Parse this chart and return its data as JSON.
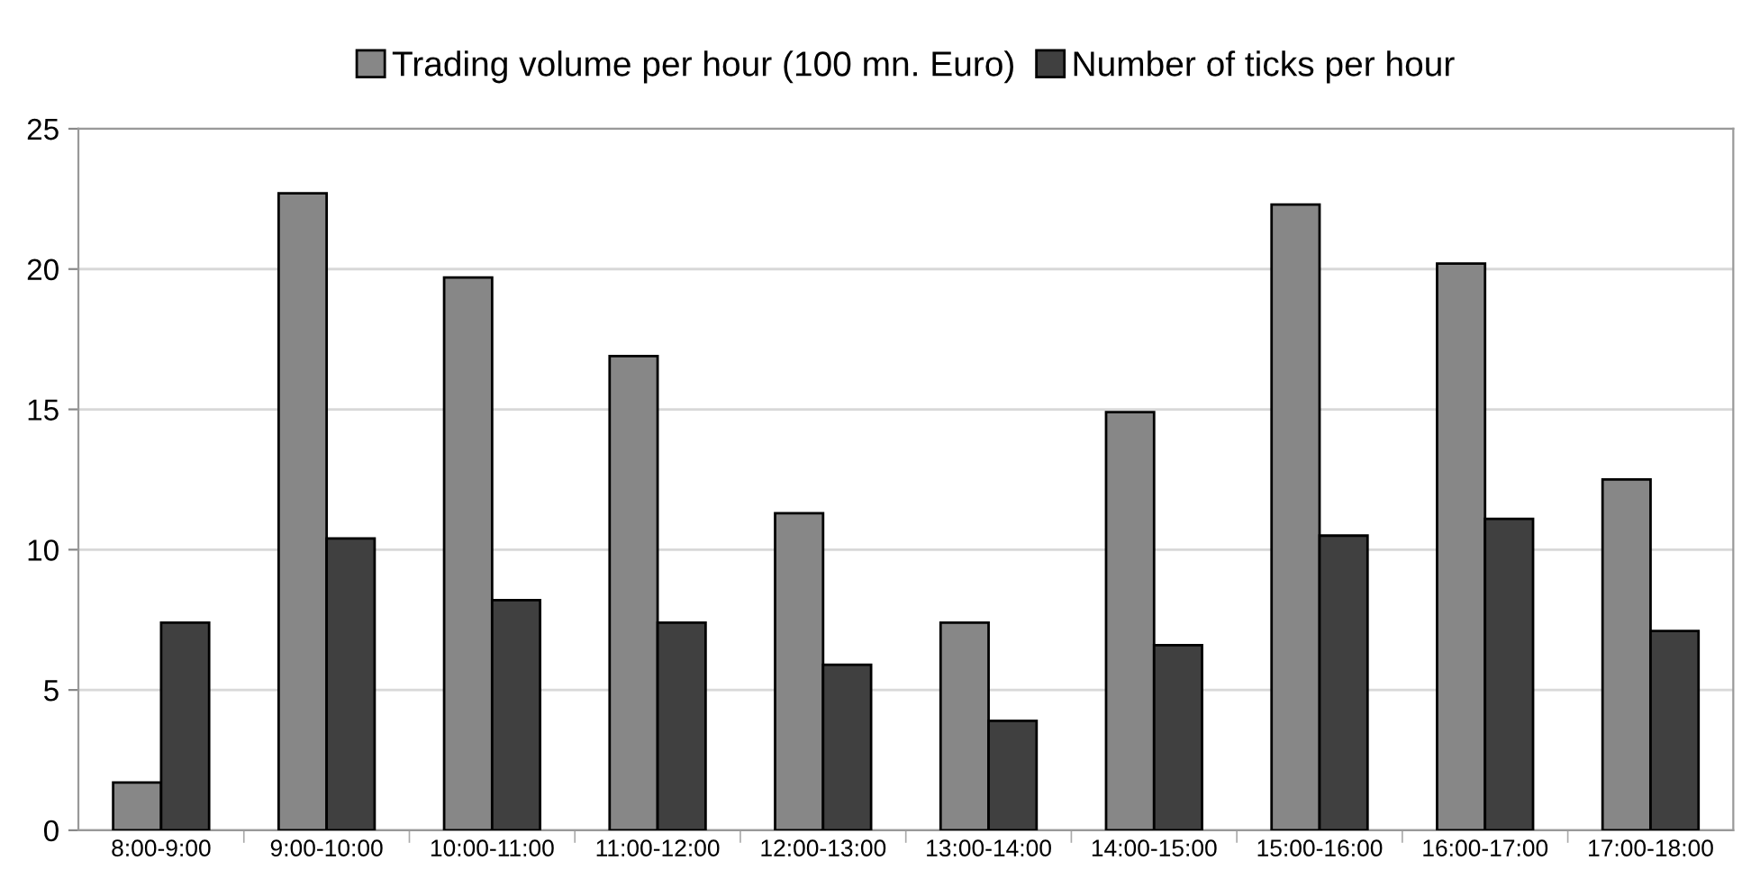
{
  "chart_data": {
    "type": "bar",
    "categories": [
      "8:00-9:00",
      "9:00-10:00",
      "10:00-11:00",
      "11:00-12:00",
      "12:00-13:00",
      "13:00-14:00",
      "14:00-15:00",
      "15:00-16:00",
      "16:00-17:00",
      "17:00-18:00"
    ],
    "series": [
      {
        "name": "Trading volume per hour (100 mn. Euro)",
        "color": "#878787",
        "values": [
          1.7,
          22.7,
          19.7,
          16.9,
          11.3,
          7.4,
          14.9,
          22.3,
          20.2,
          12.5
        ]
      },
      {
        "name": "Number of ticks per hour",
        "color": "#404040",
        "values": [
          7.4,
          10.4,
          8.2,
          7.4,
          5.9,
          3.9,
          6.6,
          10.5,
          11.1,
          7.1
        ]
      }
    ],
    "ylim": [
      0,
      25
    ],
    "yticks": [
      0,
      5,
      10,
      15,
      20,
      25
    ],
    "grid": "y",
    "legend": "top"
  }
}
